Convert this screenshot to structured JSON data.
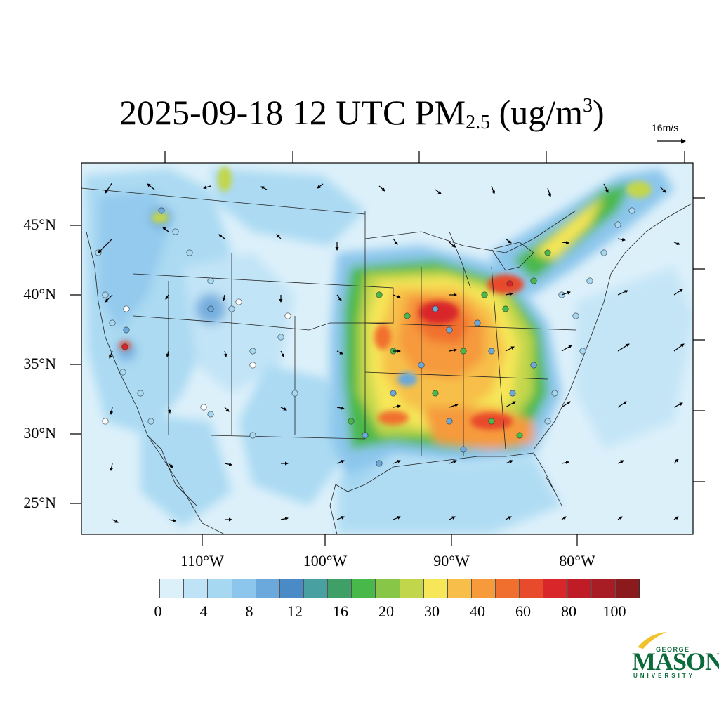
{
  "title": {
    "prefix": "2025-09-18 12 UTC PM",
    "subscript": "2.5",
    "unit_open": " (ug/m",
    "superscript": "3",
    "unit_close": ")"
  },
  "reference_vector": {
    "label": "16m/s"
  },
  "map": {
    "latitude_labels": [
      "45°N",
      "40°N",
      "35°N",
      "30°N",
      "25°N"
    ],
    "longitude_labels": [
      "110°W",
      "100°W",
      "90°W",
      "80°W"
    ]
  },
  "colorbar": {
    "colors": [
      "#ffffff",
      "#dcf0fa",
      "#bfe3f6",
      "#a6d8f2",
      "#8cc6ec",
      "#6ba8dc",
      "#4a8ac6",
      "#48a0a0",
      "#3ea066",
      "#48b84a",
      "#88c648",
      "#c2d64c",
      "#f6e658",
      "#f7bf4a",
      "#f69a3c",
      "#f16f2e",
      "#e84a2c",
      "#d8262a",
      "#c01c28",
      "#a81c24",
      "#8a1a1c"
    ],
    "tick_labels": [
      "0",
      "4",
      "8",
      "12",
      "16",
      "20",
      "30",
      "40",
      "60",
      "80",
      "100"
    ]
  },
  "logo": {
    "line1": "GEORGE",
    "line2": "MASON",
    "line3": "UNIVERSITY"
  }
}
